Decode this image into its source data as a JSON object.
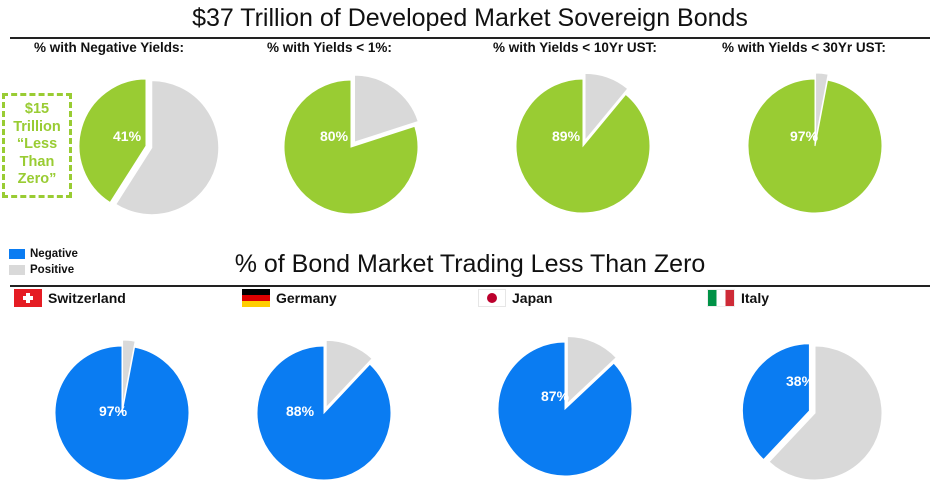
{
  "colors": {
    "green": "#99cc33",
    "gray": "#d9d9d9",
    "blue": "#0a7cf2",
    "white": "#ffffff"
  },
  "title": "$37 Trillion of Developed Market Sovereign Bonds",
  "callout": {
    "lines": [
      "$15",
      "Trillion",
      "“Less",
      "Than",
      "Zero”"
    ]
  },
  "legend": {
    "negative": "Negative",
    "positive": "Positive"
  },
  "section2_title": "% of Bond Market Trading Less Than Zero",
  "countries": [
    {
      "name": "Switzerland",
      "flag": "switzerland-flag-icon"
    },
    {
      "name": "Germany",
      "flag": "germany-flag-icon"
    },
    {
      "name": "Japan",
      "flag": "japan-flag-icon"
    },
    {
      "name": "Italy",
      "flag": "italy-flag-icon"
    }
  ],
  "chart_data": [
    {
      "type": "pie",
      "title": "% with Negative Yields:",
      "slices": [
        {
          "label": "41%",
          "value": 41,
          "color": "#99cc33"
        },
        {
          "value": 59,
          "color": "#d9d9d9"
        }
      ]
    },
    {
      "type": "pie",
      "title": "% with Yields < 1%:",
      "slices": [
        {
          "label": "80%",
          "value": 80,
          "color": "#99cc33"
        },
        {
          "value": 20,
          "color": "#d9d9d9"
        }
      ]
    },
    {
      "type": "pie",
      "title": "% with Yields < 10Yr UST:",
      "slices": [
        {
          "label": "89%",
          "value": 89,
          "color": "#99cc33"
        },
        {
          "value": 11,
          "color": "#d9d9d9"
        }
      ]
    },
    {
      "type": "pie",
      "title": "% with Yields < 30Yr UST:",
      "slices": [
        {
          "label": "97%",
          "value": 97,
          "color": "#99cc33"
        },
        {
          "value": 3,
          "color": "#d9d9d9"
        }
      ]
    },
    {
      "type": "pie",
      "title": "Switzerland",
      "legend": [
        "Negative",
        "Positive"
      ],
      "slices": [
        {
          "label": "97%",
          "value": 97,
          "color": "#0a7cf2"
        },
        {
          "value": 3,
          "color": "#d9d9d9"
        }
      ]
    },
    {
      "type": "pie",
      "title": "Germany",
      "legend": [
        "Negative",
        "Positive"
      ],
      "slices": [
        {
          "label": "88%",
          "value": 88,
          "color": "#0a7cf2"
        },
        {
          "value": 12,
          "color": "#d9d9d9"
        }
      ]
    },
    {
      "type": "pie",
      "title": "Japan",
      "legend": [
        "Negative",
        "Positive"
      ],
      "slices": [
        {
          "label": "87%",
          "value": 87,
          "color": "#0a7cf2"
        },
        {
          "value": 13,
          "color": "#d9d9d9"
        }
      ]
    },
    {
      "type": "pie",
      "title": "Italy",
      "legend": [
        "Negative",
        "Positive"
      ],
      "slices": [
        {
          "label": "38%",
          "value": 38,
          "color": "#0a7cf2"
        },
        {
          "value": 62,
          "color": "#d9d9d9"
        }
      ]
    }
  ]
}
